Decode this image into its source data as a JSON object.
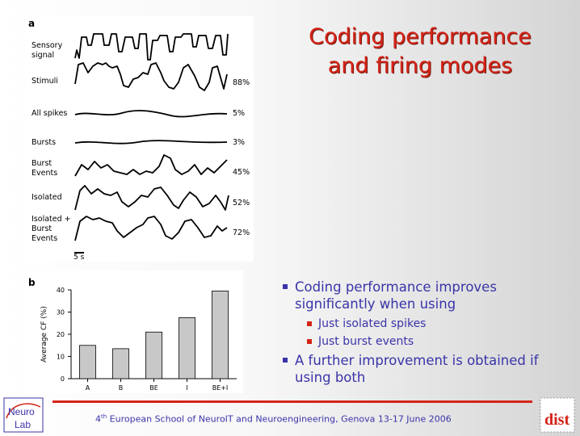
{
  "title": {
    "line1": "Coding performance",
    "line2": "and firing modes"
  },
  "panel_a": {
    "label": "a",
    "traces": [
      {
        "label": "Sensory signal",
        "pct": ""
      },
      {
        "label": "Stimuli",
        "pct": "88%"
      },
      {
        "label": "All spikes",
        "pct": "5%"
      },
      {
        "label": "Bursts",
        "pct": "3%"
      },
      {
        "label": "Burst Events",
        "pct": "45%"
      },
      {
        "label": "Isolated",
        "pct": "52%"
      },
      {
        "label": "Isolated + Burst Events",
        "pct": "72%"
      }
    ],
    "scale_bar": "5 s"
  },
  "panel_b": {
    "label": "b"
  },
  "chart_data": {
    "type": "bar",
    "categories": [
      "A",
      "B",
      "BE",
      "I",
      "BE+I"
    ],
    "values": [
      15,
      13.5,
      21,
      27.5,
      39.5
    ],
    "ylabel": "Average CF (%)",
    "xlabel": "",
    "ylim": [
      0,
      40
    ],
    "yticks": [
      0,
      10,
      20,
      30,
      40
    ],
    "bar_color": "#c8c8c8",
    "grid": false
  },
  "bullets": [
    {
      "text": "Coding performance improves significantly  when using",
      "sub": [
        "Just isolated spikes",
        "Just burst events"
      ]
    },
    {
      "text": "A further improvement is obtained if using both",
      "sub": []
    }
  ],
  "footer": {
    "sup": "th",
    "pre": "4",
    "text": " European School of NeuroIT and Neuroengineering, Genova 13-17 June 2006"
  },
  "logos": {
    "left_line1": "Neuro",
    "left_line2": "Lab",
    "right": "dist"
  },
  "colors": {
    "title": "#d42418",
    "bullet_text": "#3a34a8",
    "footer_rule": "#d42418"
  }
}
